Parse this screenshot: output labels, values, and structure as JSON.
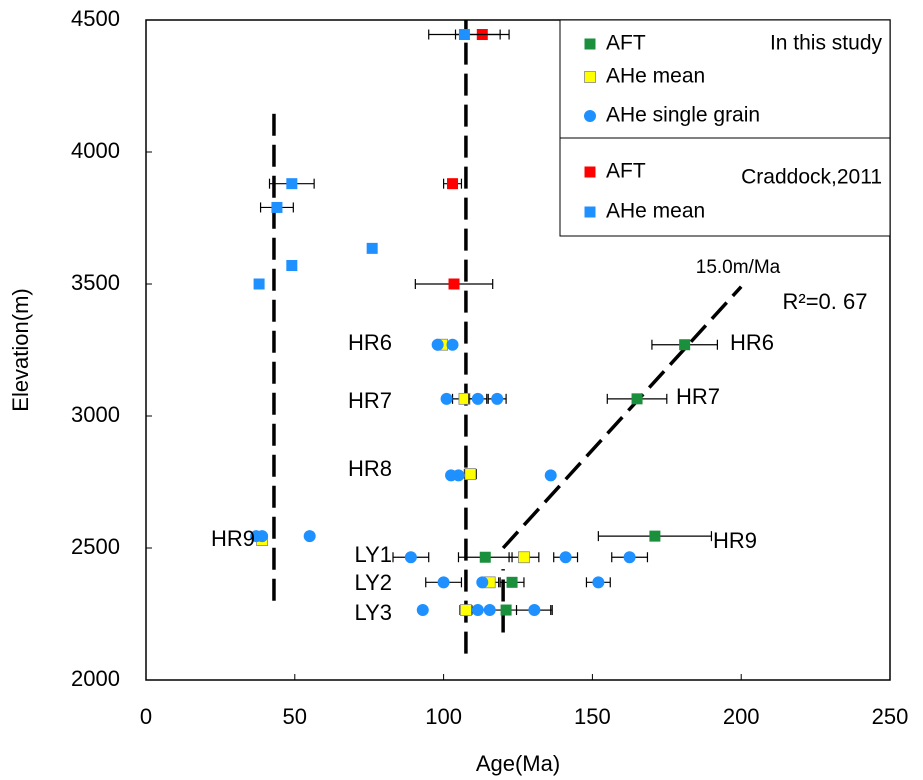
{
  "chart_data": {
    "type": "scatter",
    "x_label": "Age(Ma)",
    "y_label": "Elevation(m)",
    "xlim": [
      0,
      250
    ],
    "ylim": [
      2000,
      4500
    ],
    "xticks": [
      0,
      50,
      100,
      150,
      200,
      250
    ],
    "yticks": [
      2000,
      2500,
      3000,
      3500,
      4000,
      4500
    ],
    "legend_groups": [
      "In this study",
      "Craddock,2011"
    ],
    "series": [
      {
        "name": "AFT",
        "color": "#1a8f3c",
        "marker": "square",
        "x": [
          181,
          165,
          171,
          114,
          123,
          121
        ],
        "y": [
          3270,
          3065,
          2545,
          2465,
          2370,
          2265
        ],
        "xerr": [
          11,
          10,
          19,
          9,
          4,
          15
        ]
      },
      {
        "name": "AHe mean",
        "color": "#ffff00",
        "marker": "square",
        "x": [
          99.5,
          107,
          109,
          39,
          127,
          115.5,
          107.5
        ],
        "y": [
          3270,
          3065,
          2780,
          2530,
          2465,
          2370,
          2265
        ],
        "xerr": [
          null,
          4,
          2,
          null,
          5,
          3,
          2
        ]
      },
      {
        "name": "AHe single grain",
        "color": "#1e90ff",
        "marker": "circle",
        "x": [
          98,
          103,
          101,
          111.5,
          118,
          102.5,
          105,
          136,
          37,
          39,
          55,
          89,
          141,
          162.5,
          100,
          113,
          152,
          93,
          111.5,
          115.5,
          130.5
        ],
        "y": [
          3270,
          3270,
          3065,
          3065,
          3065,
          2775,
          2775,
          2775,
          2545,
          2545,
          2545,
          2465,
          2465,
          2465,
          2370,
          2370,
          2370,
          2265,
          2265,
          2265,
          2265
        ],
        "xerr": [
          null,
          null,
          null,
          3,
          3,
          null,
          null,
          null,
          null,
          null,
          null,
          6,
          4,
          6,
          6,
          null,
          4,
          null,
          null,
          null,
          6
        ]
      },
      {
        "name": "AFT",
        "color": "#ff0000",
        "marker": "square",
        "x": [
          113,
          103,
          103.5
        ],
        "y": [
          4445,
          3880,
          3500
        ],
        "xerr": [
          9,
          3,
          13
        ]
      },
      {
        "name": "AHe mean",
        "color": "#1e90ff",
        "marker": "square",
        "x": [
          107,
          49,
          44,
          76,
          49,
          38
        ],
        "y": [
          4445,
          3880,
          3790,
          3635,
          3570,
          3500
        ],
        "xerr": [
          12,
          7.5,
          5.5,
          null,
          null,
          null
        ]
      }
    ],
    "lines": [
      {
        "x": [
          43,
          43
        ],
        "y": [
          2300,
          4150
        ]
      },
      {
        "x": [
          107.5,
          107.5
        ],
        "y": [
          2100,
          4500
        ]
      },
      {
        "x": [
          120,
          120
        ],
        "y": [
          2180,
          2420
        ]
      },
      {
        "x": [
          120,
          200
        ],
        "y": [
          2500,
          3490
        ]
      }
    ],
    "annotations": [
      "HR6",
      "HR7",
      "HR8",
      "HR9",
      "HR6",
      "HR7",
      "HR9",
      "LY1",
      "LY2",
      "LY3",
      "15.0m/Ma",
      "R²=0. 67"
    ]
  }
}
